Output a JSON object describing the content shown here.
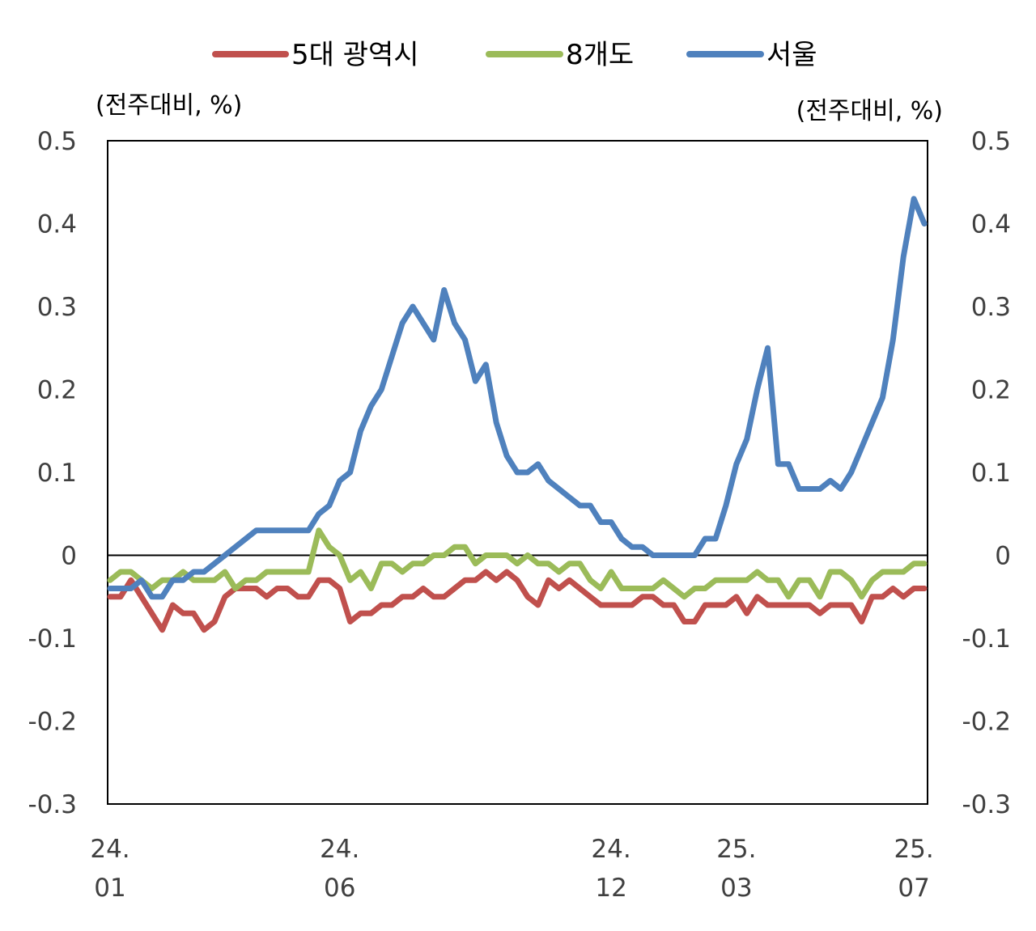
{
  "chart_data": {
    "type": "line",
    "title": "",
    "y_unit_left": "(전주대비, %)",
    "y_unit_right": "(전주대비, %)",
    "ylim": [
      -0.3,
      0.5
    ],
    "y_ticks": [
      0.5,
      0.4,
      0.3,
      0.2,
      0.1,
      0,
      -0.1,
      -0.2,
      -0.3
    ],
    "y_tick_labels": [
      "0.5",
      "0.4",
      "0.3",
      "0.2",
      "0.1",
      "0",
      "-0.1",
      "-0.2",
      "-0.3"
    ],
    "x_count": 79,
    "x_ticks": [
      {
        "index": 0,
        "line1": "24.",
        "line2": "01"
      },
      {
        "index": 22,
        "line1": "24.",
        "line2": "06"
      },
      {
        "index": 48,
        "line1": "24.",
        "line2": "12"
      },
      {
        "index": 60,
        "line1": "25.",
        "line2": "03"
      },
      {
        "index": 77,
        "line1": "25.",
        "line2": "07"
      }
    ],
    "legend_position": "top",
    "series": [
      {
        "name": "5대 광역시",
        "color": "#c0504d",
        "values": [
          -0.05,
          -0.05,
          -0.03,
          -0.05,
          -0.07,
          -0.09,
          -0.06,
          -0.07,
          -0.07,
          -0.09,
          -0.08,
          -0.05,
          -0.04,
          -0.04,
          -0.04,
          -0.05,
          -0.04,
          -0.04,
          -0.05,
          -0.05,
          -0.03,
          -0.03,
          -0.04,
          -0.08,
          -0.07,
          -0.07,
          -0.06,
          -0.06,
          -0.05,
          -0.05,
          -0.04,
          -0.05,
          -0.05,
          -0.04,
          -0.03,
          -0.03,
          -0.02,
          -0.03,
          -0.02,
          -0.03,
          -0.05,
          -0.06,
          -0.03,
          -0.04,
          -0.03,
          -0.04,
          -0.05,
          -0.06,
          -0.06,
          -0.06,
          -0.06,
          -0.05,
          -0.05,
          -0.06,
          -0.06,
          -0.08,
          -0.08,
          -0.06,
          -0.06,
          -0.06,
          -0.05,
          -0.07,
          -0.05,
          -0.06,
          -0.06,
          -0.06,
          -0.06,
          -0.06,
          -0.07,
          -0.06,
          -0.06,
          -0.06,
          -0.08,
          -0.05,
          -0.05,
          -0.04,
          -0.05,
          -0.04,
          -0.04
        ]
      },
      {
        "name": "8개도",
        "color": "#9bbb59",
        "values": [
          -0.03,
          -0.02,
          -0.02,
          -0.03,
          -0.04,
          -0.03,
          -0.03,
          -0.02,
          -0.03,
          -0.03,
          -0.03,
          -0.02,
          -0.04,
          -0.03,
          -0.03,
          -0.02,
          -0.02,
          -0.02,
          -0.02,
          -0.02,
          0.03,
          0.01,
          0.0,
          -0.03,
          -0.02,
          -0.04,
          -0.01,
          -0.01,
          -0.02,
          -0.01,
          -0.01,
          0.0,
          0.0,
          0.01,
          0.01,
          -0.01,
          0.0,
          0.0,
          0.0,
          -0.01,
          0.0,
          -0.01,
          -0.01,
          -0.02,
          -0.01,
          -0.01,
          -0.03,
          -0.04,
          -0.02,
          -0.04,
          -0.04,
          -0.04,
          -0.04,
          -0.03,
          -0.04,
          -0.05,
          -0.04,
          -0.04,
          -0.03,
          -0.03,
          -0.03,
          -0.03,
          -0.02,
          -0.03,
          -0.03,
          -0.05,
          -0.03,
          -0.03,
          -0.05,
          -0.02,
          -0.02,
          -0.03,
          -0.05,
          -0.03,
          -0.02,
          -0.02,
          -0.02,
          -0.01,
          -0.01
        ]
      },
      {
        "name": "서울",
        "color": "#4f81bd",
        "values": [
          -0.04,
          -0.04,
          -0.04,
          -0.03,
          -0.05,
          -0.05,
          -0.03,
          -0.03,
          -0.02,
          -0.02,
          -0.01,
          0.0,
          0.01,
          0.02,
          0.03,
          0.03,
          0.03,
          0.03,
          0.03,
          0.03,
          0.05,
          0.06,
          0.09,
          0.1,
          0.15,
          0.18,
          0.2,
          0.24,
          0.28,
          0.3,
          0.28,
          0.26,
          0.32,
          0.28,
          0.26,
          0.21,
          0.23,
          0.16,
          0.12,
          0.1,
          0.1,
          0.11,
          0.09,
          0.08,
          0.07,
          0.06,
          0.06,
          0.04,
          0.04,
          0.02,
          0.01,
          0.01,
          0.0,
          0.0,
          0.0,
          0.0,
          0.0,
          0.02,
          0.02,
          0.06,
          0.11,
          0.14,
          0.2,
          0.25,
          0.11,
          0.11,
          0.08,
          0.08,
          0.08,
          0.09,
          0.08,
          0.1,
          0.13,
          0.16,
          0.19,
          0.26,
          0.36,
          0.43,
          0.4
        ]
      }
    ]
  }
}
